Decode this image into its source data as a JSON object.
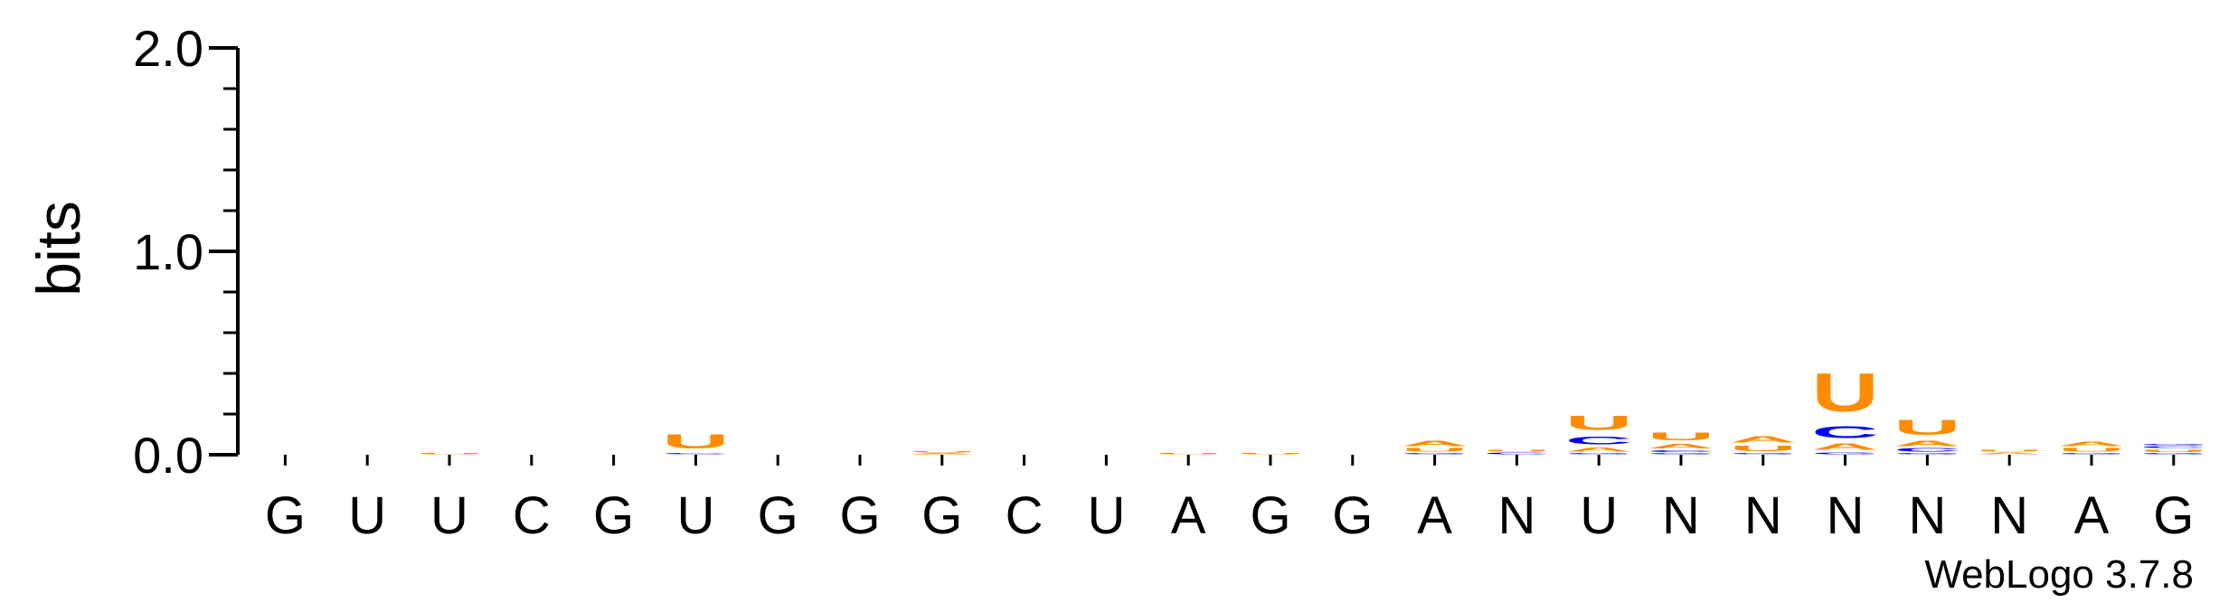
{
  "chart_data": {
    "type": "sequence-logo",
    "ylabel": "bits",
    "ylim": [
      0,
      2.0
    ],
    "yticks": [
      {
        "value": 0.0,
        "label": "0.0"
      },
      {
        "value": 1.0,
        "label": "1.0"
      },
      {
        "value": 2.0,
        "label": "2.0"
      }
    ],
    "minor_tick_step": 0.2,
    "positions": [
      "G",
      "U",
      "U",
      "C",
      "G",
      "U",
      "G",
      "G",
      "G",
      "C",
      "U",
      "A",
      "G",
      "G",
      "A",
      "N",
      "U",
      "N",
      "N",
      "N",
      "N",
      "N",
      "A",
      "G"
    ],
    "colors": {
      "A": "#ff8c00",
      "U": "#ff8c00",
      "C": "#0000ff",
      "G": "#0000ff"
    },
    "stacks": [
      [],
      [],
      [
        {
          "letter": "U",
          "bits": 0.01
        }
      ],
      [],
      [],
      [
        {
          "letter": "C",
          "bits": 0.01
        },
        {
          "letter": "U",
          "bits": 0.11
        }
      ],
      [],
      [],
      [
        {
          "letter": "A",
          "bits": 0.01
        },
        {
          "letter": "U",
          "bits": 0.01
        }
      ],
      [],
      [],
      [
        {
          "letter": "U",
          "bits": 0.01
        }
      ],
      [
        {
          "letter": "U",
          "bits": 0.01
        }
      ],
      [],
      [
        {
          "letter": "G",
          "bits": 0.01
        },
        {
          "letter": "U",
          "bits": 0.025
        },
        {
          "letter": "A",
          "bits": 0.04
        }
      ],
      [
        {
          "letter": "C",
          "bits": 0.012
        },
        {
          "letter": "U",
          "bits": 0.015
        }
      ],
      [
        {
          "letter": "G",
          "bits": 0.01
        },
        {
          "letter": "A",
          "bits": 0.03
        },
        {
          "letter": "C",
          "bits": 0.06
        },
        {
          "letter": "U",
          "bits": 0.11
        }
      ],
      [
        {
          "letter": "G",
          "bits": 0.01
        },
        {
          "letter": "C",
          "bits": 0.015
        },
        {
          "letter": "A",
          "bits": 0.035
        },
        {
          "letter": "U",
          "bits": 0.06
        }
      ],
      [
        {
          "letter": "G",
          "bits": 0.01
        },
        {
          "letter": "U",
          "bits": 0.04
        },
        {
          "letter": "A",
          "bits": 0.05
        }
      ],
      [
        {
          "letter": "G",
          "bits": 0.015
        },
        {
          "letter": "A",
          "bits": 0.05
        },
        {
          "letter": "C",
          "bits": 0.09
        },
        {
          "letter": "U",
          "bits": 0.3
        }
      ],
      [
        {
          "letter": "G",
          "bits": 0.01
        },
        {
          "letter": "C",
          "bits": 0.025
        },
        {
          "letter": "A",
          "bits": 0.04
        },
        {
          "letter": "U",
          "bits": 0.12
        }
      ],
      [
        {
          "letter": "A",
          "bits": 0.012
        },
        {
          "letter": "U",
          "bits": 0.015
        }
      ],
      [
        {
          "letter": "G",
          "bits": 0.01
        },
        {
          "letter": "U",
          "bits": 0.025
        },
        {
          "letter": "A",
          "bits": 0.035
        }
      ],
      [
        {
          "letter": "G",
          "bits": 0.01
        },
        {
          "letter": "U",
          "bits": 0.02
        },
        {
          "letter": "C",
          "bits": 0.015
        },
        {
          "letter": "G",
          "bits": 0.01
        }
      ]
    ]
  },
  "footer": {
    "credit": "WebLogo 3.7.8"
  }
}
